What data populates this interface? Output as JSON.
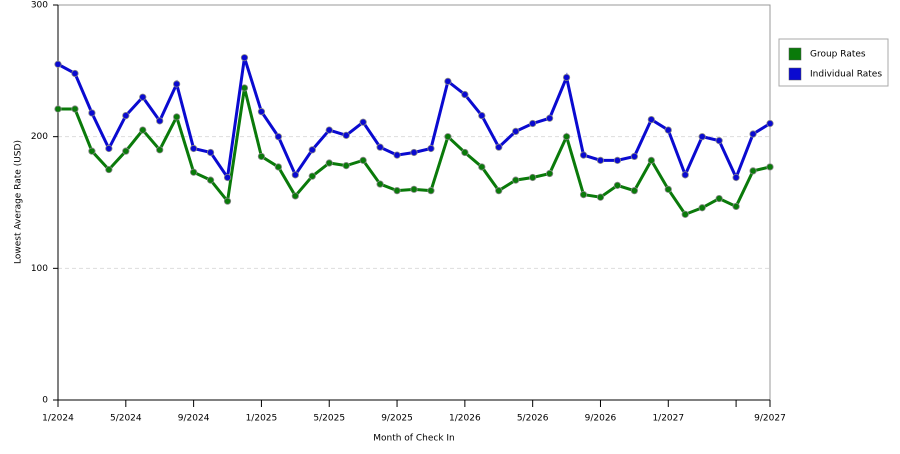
{
  "chart_data": {
    "type": "line",
    "xlabel": "Month of Check In",
    "ylabel": "Lowest Average Rate (USD)",
    "categories": [
      "1/2024",
      null,
      null,
      null,
      "5/2024",
      null,
      null,
      null,
      "9/2024",
      null,
      null,
      null,
      "1/2025",
      null,
      null,
      null,
      "5/2025",
      null,
      null,
      null,
      "9/2025",
      null,
      null,
      null,
      "1/2026",
      null,
      null,
      null,
      "5/2026",
      null,
      null,
      null,
      "9/2026",
      null,
      null,
      null,
      "1/2027",
      null,
      null,
      null,
      null,
      null,
      "9/2027"
    ],
    "series": [
      {
        "name": "Group Rates",
        "color": "#0a7a0a",
        "values": [
          221,
          221,
          189,
          175,
          189,
          205,
          190,
          215,
          173,
          167,
          151,
          237,
          185,
          177,
          155,
          170,
          180,
          178,
          182,
          164,
          159,
          160,
          159,
          200,
          188,
          177,
          159,
          167,
          169,
          172,
          200,
          156,
          154,
          163,
          159,
          182,
          160,
          141,
          146,
          153,
          147,
          174,
          177
        ]
      },
      {
        "name": "Individual Rates",
        "color": "#0a0ad0",
        "values": [
          255,
          248,
          218,
          191,
          216,
          230,
          212,
          240,
          191,
          188,
          169,
          260,
          219,
          200,
          171,
          190,
          205,
          201,
          211,
          192,
          186,
          188,
          191,
          242,
          232,
          216,
          192,
          204,
          210,
          214,
          245,
          186,
          182,
          182,
          185,
          213,
          205,
          171,
          200,
          197,
          169,
          202,
          210
        ]
      }
    ],
    "ylim": [
      0,
      300
    ],
    "yticks": [
      0,
      100,
      200,
      300
    ],
    "grid": true,
    "legend": "right"
  }
}
